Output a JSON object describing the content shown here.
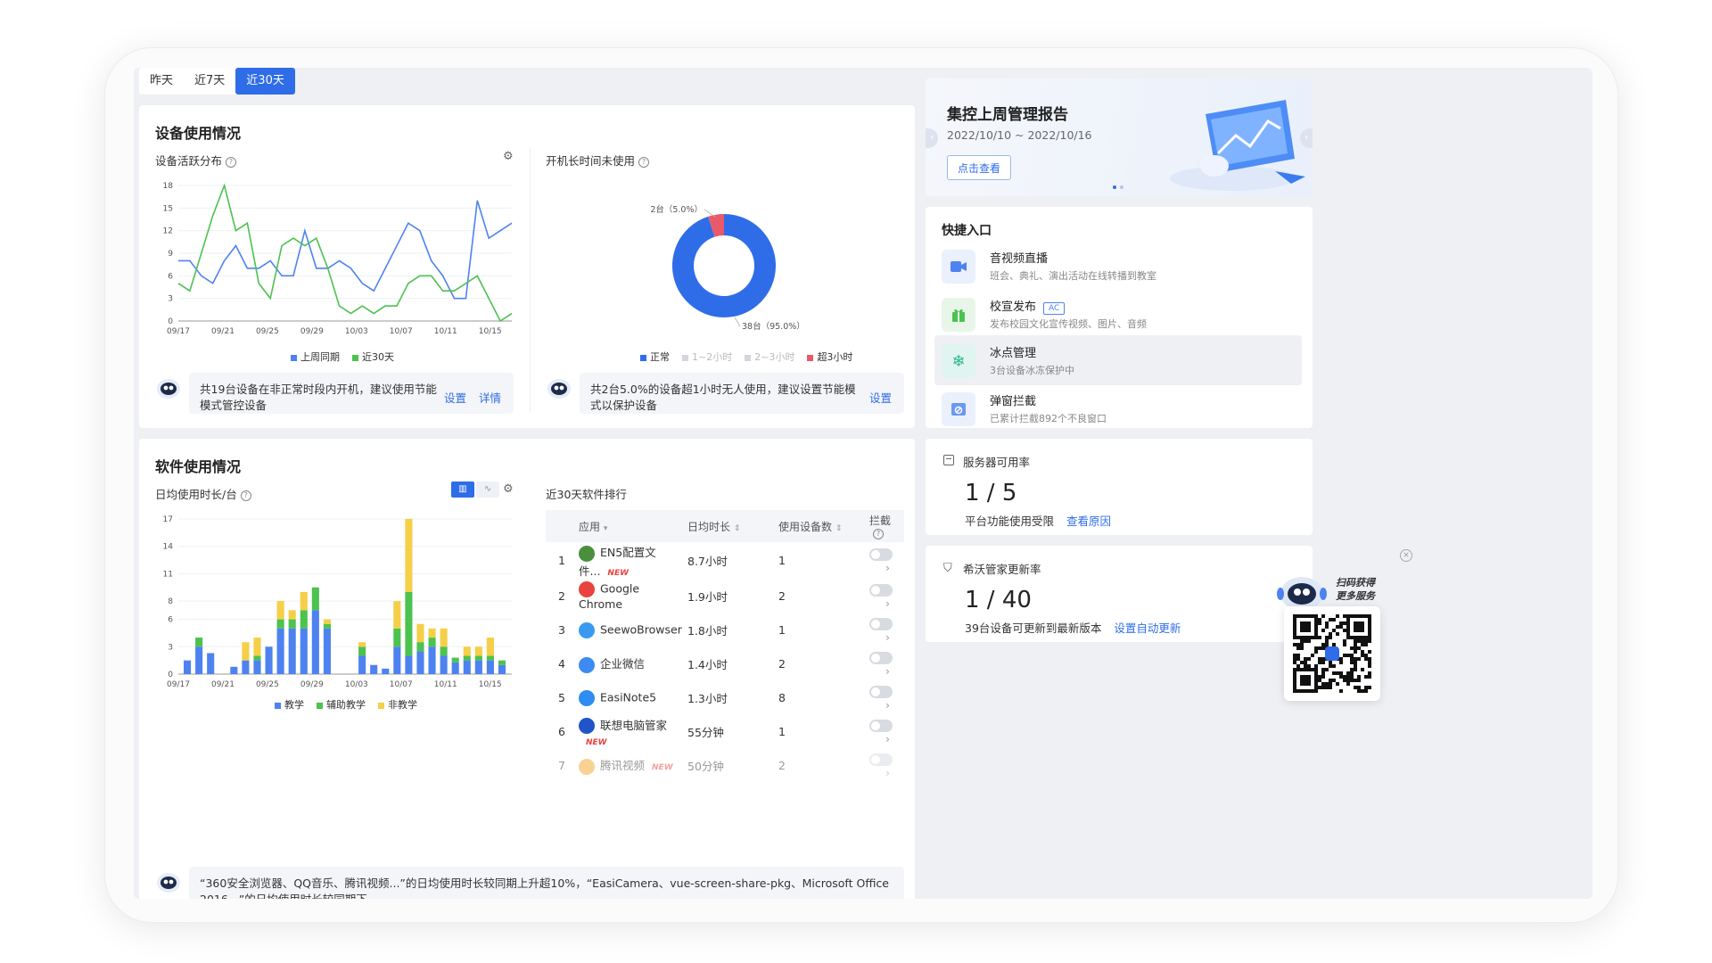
{
  "tabs": [
    {
      "label": "昨天"
    },
    {
      "label": "近7天"
    },
    {
      "label": "近30天"
    }
  ],
  "device_usage": {
    "title": "设备使用情况",
    "activity": {
      "title": "设备活跃分布",
      "legend": [
        "上周同期",
        "近30天"
      ],
      "tip": "共19台设备在非正常时段内开机，建议使用节能模式管控设备",
      "tip_links": [
        "设置",
        "详情"
      ]
    },
    "idle": {
      "title": "开机长时间未使用",
      "legend": [
        "正常",
        "1~2小时",
        "2~3小时",
        "超3小时"
      ],
      "tip": "共2台5.0%的设备超1小时无人使用，建议设置节能模式以保护设备",
      "tip_link": "设置"
    }
  },
  "software_usage": {
    "title": "软件使用情况",
    "daily": {
      "title": "日均使用时长/台",
      "legend": [
        "教学",
        "辅助教学",
        "非教学"
      ]
    },
    "ranking": {
      "title": "近30天软件排行",
      "headers": [
        "应用",
        "日均时长",
        "使用设备数",
        "拦截"
      ],
      "rows": [
        {
          "rank": "1",
          "name": "EN5配置文件...",
          "is_new": true,
          "duration": "8.7小时",
          "devices": "1",
          "color": "#4a8f3c"
        },
        {
          "rank": "2",
          "name": "Google Chrome",
          "is_new": false,
          "duration": "1.9小时",
          "devices": "2",
          "color": "#e8433e"
        },
        {
          "rank": "3",
          "name": "SeewoBrowser",
          "is_new": false,
          "duration": "1.8小时",
          "devices": "1",
          "color": "#3a9af0"
        },
        {
          "rank": "4",
          "name": "企业微信",
          "is_new": false,
          "duration": "1.4小时",
          "devices": "2",
          "color": "#3d8bf2"
        },
        {
          "rank": "5",
          "name": "EasiNote5",
          "is_new": false,
          "duration": "1.3小时",
          "devices": "8",
          "color": "#2f8cf0"
        },
        {
          "rank": "6",
          "name": "联想电脑管家",
          "is_new": true,
          "duration": "55分钟",
          "devices": "1",
          "color": "#1f55c8"
        },
        {
          "rank": "7",
          "name": "腾讯视频",
          "is_new": true,
          "duration": "50分钟",
          "devices": "2",
          "color": "#f0a72a"
        }
      ],
      "new_label": "NEW"
    },
    "tip": "“360安全浏览器、QQ音乐、腾讯视频...”的日均使用时长较同期上升超10%，“EasiCamera、vue-screen-share-pkg、Microsoft Office 2016...”的日均使用时长较同期下"
  },
  "report": {
    "title": "集控上周管理报告",
    "date_range": "2022/10/10 ~ 2022/10/16",
    "button": "点击查看"
  },
  "quick_entry": {
    "title": "快捷入口",
    "items": [
      {
        "name": "音视频直播",
        "desc": "班会、典礼、演出活动在线转播到教室",
        "icon": "video-icon"
      },
      {
        "name": "校宣发布",
        "desc": "发布校园文化宣传视频、图片、音频",
        "badge": "AC",
        "icon": "gift-icon"
      },
      {
        "name": "冰点管理",
        "desc": "3台设备冰冻保护中",
        "icon": "snowflake-icon"
      },
      {
        "name": "弹窗拦截",
        "desc": "已累计拦截892个不良窗口",
        "icon": "popup-block-icon"
      }
    ]
  },
  "server": {
    "title": "服务器可用率",
    "value": "1 / 5",
    "desc": "平台功能使用受限",
    "link": "查看原因"
  },
  "update": {
    "title": "希沃管家更新率",
    "value": "1 / 40",
    "desc": "39台设备可更新到最新版本",
    "link": "设置自动更新"
  },
  "qr": {
    "label1": "扫码获得",
    "label2": "更多服务"
  },
  "colors": {
    "accent": "#2f6de8",
    "green": "#4cc24f",
    "yellow": "#f5cf47",
    "red": "#e8596a"
  },
  "chart_data": [
    {
      "type": "line",
      "title": "设备活跃分布",
      "x_ticks": [
        "09/17",
        "09/21",
        "09/25",
        "09/29",
        "10/03",
        "10/07",
        "10/11",
        "10/15"
      ],
      "y_ticks": [
        0,
        3,
        6,
        9,
        12,
        15,
        18
      ],
      "ylim": [
        0,
        18
      ],
      "series": [
        {
          "name": "上周同期",
          "color": "#4e82f0",
          "values": [
            8,
            8,
            6,
            5,
            8,
            10,
            7,
            7,
            8,
            6,
            6,
            12,
            7,
            7,
            8,
            7,
            5,
            4,
            7,
            10,
            13,
            12,
            8,
            6,
            3,
            3,
            16,
            11,
            12,
            13
          ]
        },
        {
          "name": "近30天",
          "color": "#4cc24f",
          "values": [
            5,
            4,
            9,
            14,
            18,
            12,
            13,
            5,
            3,
            10,
            11,
            10,
            11,
            7,
            2,
            1,
            2,
            1,
            2,
            2,
            5,
            6,
            6,
            4,
            4,
            5,
            6,
            3,
            0,
            1
          ]
        }
      ]
    },
    {
      "type": "pie",
      "title": "开机长时间未使用",
      "slices": [
        {
          "name": "正常",
          "value": 38,
          "label": "38台（95.0%）",
          "color": "#2f6de8"
        },
        {
          "name": "超3小时",
          "value": 2,
          "label": "2台（5.0%）",
          "color": "#e8596a"
        }
      ]
    },
    {
      "type": "bar",
      "title": "日均使用时长/台",
      "stacked": true,
      "x_ticks": [
        "09/17",
        "09/21",
        "09/25",
        "09/29",
        "10/03",
        "10/07",
        "10/11",
        "10/15"
      ],
      "y_ticks": [
        0,
        3,
        6,
        8,
        11,
        14,
        17
      ],
      "ylim": [
        0,
        17
      ],
      "series": [
        {
          "name": "教学",
          "color": "#4e82f0",
          "values": [
            1.5,
            3,
            2.3,
            0,
            0.8,
            1.5,
            1.5,
            3,
            5,
            5,
            5,
            7,
            5,
            0,
            0,
            2,
            1,
            0.6,
            3,
            2,
            2.5,
            3,
            2,
            1.3,
            1.5,
            1.5,
            1.5,
            1
          ]
        },
        {
          "name": "辅助教学",
          "color": "#4cc24f",
          "values": [
            0,
            1,
            0,
            0,
            0,
            0,
            0.5,
            0,
            1,
            1,
            2,
            2.5,
            0.5,
            0,
            0,
            1,
            0,
            0,
            2,
            7,
            1,
            1,
            1,
            0.5,
            0.5,
            0.5,
            0.5,
            0.5
          ]
        },
        {
          "name": "非教学",
          "color": "#f5cf47",
          "values": [
            0,
            0,
            0,
            0,
            0,
            2,
            2,
            0,
            2,
            1,
            2,
            0,
            0.5,
            0,
            0,
            0.5,
            0,
            0,
            3,
            8,
            2,
            1,
            2,
            0,
            1,
            1,
            2,
            0
          ]
        }
      ]
    }
  ]
}
